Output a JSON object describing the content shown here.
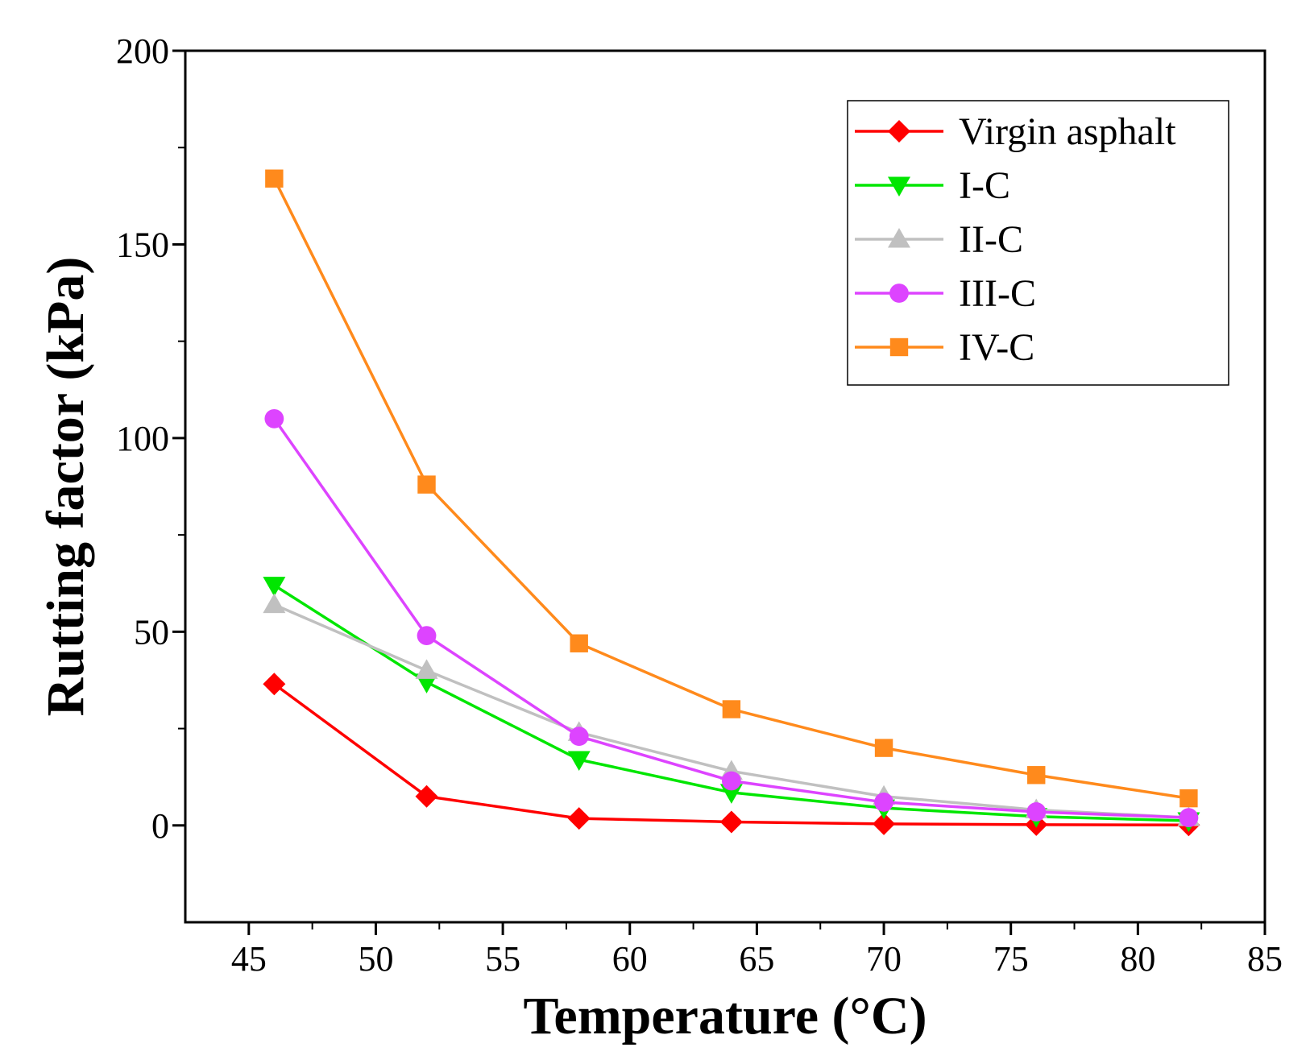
{
  "chart_data": {
    "type": "line",
    "title": "",
    "xlabel": "Temperature (°C)",
    "ylabel": "Rutting factor (kPa)",
    "xlim": [
      42.5,
      85
    ],
    "ylim": [
      -25,
      200
    ],
    "xticks": [
      45,
      50,
      55,
      60,
      65,
      70,
      75,
      80,
      85
    ],
    "yticks": [
      0,
      50,
      100,
      150,
      200
    ],
    "legend_position": "top-right",
    "x": [
      46,
      52,
      58,
      64,
      70,
      76,
      82
    ],
    "series": [
      {
        "name": "Virgin asphalt",
        "color": "#ff0000",
        "marker": "diamond",
        "values": [
          36.5,
          7.5,
          1.8,
          0.9,
          0.4,
          0.2,
          0.1
        ]
      },
      {
        "name": "I-C",
        "color": "#00e600",
        "marker": "triangle-down",
        "values": [
          62,
          37,
          17,
          8.5,
          4.5,
          2.3,
          1.2
        ]
      },
      {
        "name": "II-C",
        "color": "#c0c0c0",
        "marker": "triangle-up",
        "values": [
          57,
          40,
          24,
          14,
          7.5,
          4,
          2
        ]
      },
      {
        "name": "III-C",
        "color": "#dd44ff",
        "marker": "circle",
        "values": [
          105,
          49,
          23,
          11.5,
          6,
          3.5,
          2
        ]
      },
      {
        "name": "IV-C",
        "color": "#ff8a1c",
        "marker": "square",
        "values": [
          167,
          88,
          47,
          30,
          20,
          13,
          7
        ]
      }
    ]
  }
}
